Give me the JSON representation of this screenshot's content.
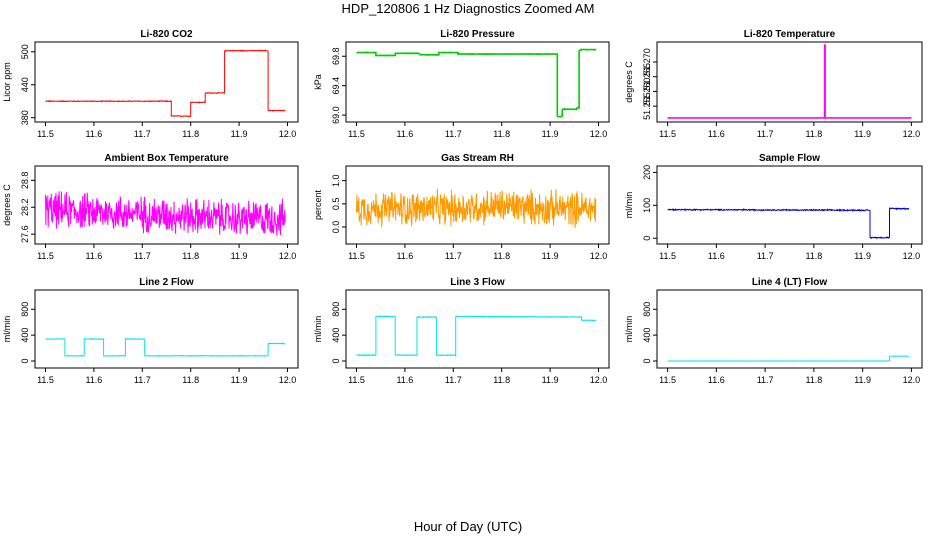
{
  "figure": {
    "title": "HDP_120806  1 Hz Diagnostics Zoomed AM",
    "xlabel": "Hour of Day (UTC)"
  },
  "chart_data": [
    {
      "type": "line",
      "title": "Li-820 CO2",
      "xlabel": "",
      "ylabel": "Licor ppm",
      "color": "#ff0000",
      "xlim": [
        11.5,
        12.0
      ],
      "ylim": [
        378,
        512
      ],
      "xticks": [
        "11.5",
        "11.6",
        "11.7",
        "11.8",
        "11.9",
        "12.0"
      ],
      "yticks": [
        {
          "v": 380,
          "t": "380"
        },
        {
          "v": 440,
          "t": "440"
        },
        {
          "v": 500,
          "t": "500"
        }
      ],
      "noise": 0.6,
      "clip": false,
      "x": [
        11.5,
        11.76,
        11.76,
        11.8,
        11.8,
        11.83,
        11.83,
        11.87,
        11.87,
        11.96,
        11.96,
        11.995
      ],
      "y": [
        410,
        410,
        383,
        383,
        408,
        408,
        425,
        425,
        502,
        502,
        393,
        393
      ]
    },
    {
      "type": "line",
      "title": "Li-820 Pressure",
      "xlabel": "",
      "ylabel": "kPa",
      "color": "#00cc00",
      "xlim": [
        11.5,
        12.0
      ],
      "ylim": [
        68.95,
        69.95
      ],
      "xticks": [
        "11.5",
        "11.6",
        "11.7",
        "11.8",
        "11.9",
        "12.0"
      ],
      "yticks": [
        {
          "v": 69.0,
          "t": "69.0"
        },
        {
          "v": 69.4,
          "t": "69.4"
        },
        {
          "v": 69.8,
          "t": "69.8"
        }
      ],
      "noise": 0.002,
      "clip": false,
      "x": [
        11.5,
        11.54,
        11.54,
        11.58,
        11.58,
        11.63,
        11.63,
        11.67,
        11.67,
        11.71,
        11.71,
        11.915,
        11.915,
        11.925,
        11.925,
        11.955,
        11.955,
        11.96,
        11.96,
        11.965,
        11.965,
        11.995
      ],
      "y": [
        69.85,
        69.85,
        69.81,
        69.81,
        69.84,
        69.84,
        69.82,
        69.82,
        69.85,
        69.85,
        69.83,
        69.83,
        68.98,
        68.98,
        69.08,
        69.08,
        69.1,
        69.1,
        69.88,
        69.88,
        69.89,
        69.89
      ]
    },
    {
      "type": "line",
      "title": "Li-820 Temperature",
      "xlabel": "",
      "ylabel": "degrees C",
      "color": "#ff00ff",
      "xlim": [
        11.5,
        12.0
      ],
      "ylim": [
        51.2507,
        51.2757
      ],
      "xticks": [
        "11.5",
        "11.6",
        "11.7",
        "11.8",
        "11.9",
        "12.0"
      ],
      "yticks": [
        {
          "v": 51.255,
          "t": "51.255"
        },
        {
          "v": 51.26,
          "t": "51.260"
        },
        {
          "v": 51.265,
          "t": "51.265"
        },
        {
          "v": 51.27,
          "t": "51.270"
        }
      ],
      "noise": 0,
      "clip": false,
      "x": [
        11.5,
        11.822,
        11.822,
        11.823,
        11.823,
        12.0
      ],
      "y": [
        51.251,
        51.251,
        51.2757,
        51.2757,
        51.251,
        51.251
      ]
    },
    {
      "type": "line",
      "title": "Ambient Box Temperature",
      "xlabel": "",
      "ylabel": "degrees C",
      "color": "#ff00ff",
      "xlim": [
        11.5,
        12.0
      ],
      "ylim": [
        27.45,
        29.05
      ],
      "xticks": [
        "11.5",
        "11.6",
        "11.7",
        "11.8",
        "11.9",
        "12.0"
      ],
      "yticks": [
        {
          "v": 27.6,
          "t": "27.6"
        },
        {
          "v": 28.2,
          "t": "28.2"
        },
        {
          "v": 28.8,
          "t": "28.8"
        }
      ],
      "noise": 0.32,
      "clip": true,
      "x": [
        11.5,
        11.6,
        11.7,
        11.8,
        11.9,
        11.995
      ],
      "y": [
        28.15,
        28.1,
        28.05,
        28.0,
        27.95,
        27.95
      ]
    },
    {
      "type": "line",
      "title": "Gas Stream RH",
      "xlabel": "",
      "ylabel": "percent",
      "color": "#ff9900",
      "xlim": [
        11.5,
        12.0
      ],
      "ylim": [
        -0.3,
        1.25
      ],
      "xticks": [
        "11.5",
        "11.6",
        "11.7",
        "11.8",
        "11.9",
        "12.0"
      ],
      "yticks": [
        {
          "v": 0.0,
          "t": "0.0"
        },
        {
          "v": 0.5,
          "t": "0.5"
        },
        {
          "v": 1.0,
          "t": "1.0"
        }
      ],
      "noise": 0.3,
      "clip": true,
      "x": [
        11.5,
        11.6,
        11.7,
        11.8,
        11.9,
        11.995
      ],
      "y": [
        0.4,
        0.4,
        0.4,
        0.45,
        0.4,
        0.4
      ]
    },
    {
      "type": "line",
      "title": "Sample Flow",
      "xlabel": "",
      "ylabel": "ml/min",
      "color": "#0000cc",
      "xlim": [
        11.5,
        12.0
      ],
      "ylim": [
        -8,
        210
      ],
      "xticks": [
        "11.5",
        "11.6",
        "11.7",
        "11.8",
        "11.9",
        "12.0"
      ],
      "yticks": [
        {
          "v": 0,
          "t": "0"
        },
        {
          "v": 100,
          "t": "100"
        },
        {
          "v": 200,
          "t": "200"
        }
      ],
      "noise": 1.5,
      "clip": false,
      "x": [
        11.5,
        11.915,
        11.915,
        11.955,
        11.955,
        11.995
      ],
      "y": [
        87,
        85,
        2,
        2,
        90,
        90
      ]
    },
    {
      "type": "line",
      "title": "Line 2 Flow",
      "xlabel": "",
      "ylabel": "ml/min",
      "color": "#00e5ee",
      "xlim": [
        11.5,
        12.0
      ],
      "ylim": [
        -60,
        1050
      ],
      "xticks": [
        "11.5",
        "11.6",
        "11.7",
        "11.8",
        "11.9",
        "12.0"
      ],
      "yticks": [
        {
          "v": 0,
          "t": "0"
        },
        {
          "v": 400,
          "t": "400"
        },
        {
          "v": 800,
          "t": "800"
        }
      ],
      "noise": 4,
      "clip": false,
      "x": [
        11.5,
        11.54,
        11.54,
        11.58,
        11.58,
        11.62,
        11.62,
        11.665,
        11.665,
        11.705,
        11.705,
        11.96,
        11.96,
        11.995
      ],
      "y": [
        340,
        340,
        80,
        80,
        340,
        340,
        80,
        80,
        340,
        340,
        80,
        80,
        270,
        270
      ]
    },
    {
      "type": "line",
      "title": "Line 3 Flow",
      "xlabel": "",
      "ylabel": "ml/min",
      "color": "#00e5ee",
      "xlim": [
        11.5,
        12.0
      ],
      "ylim": [
        -60,
        1050
      ],
      "xticks": [
        "11.5",
        "11.6",
        "11.7",
        "11.8",
        "11.9",
        "12.0"
      ],
      "yticks": [
        {
          "v": 0,
          "t": "0"
        },
        {
          "v": 400,
          "t": "400"
        },
        {
          "v": 800,
          "t": "800"
        }
      ],
      "noise": 5,
      "clip": false,
      "x": [
        11.5,
        11.54,
        11.54,
        11.58,
        11.58,
        11.625,
        11.625,
        11.665,
        11.665,
        11.705,
        11.705,
        11.965,
        11.965,
        11.995
      ],
      "y": [
        90,
        90,
        690,
        690,
        90,
        90,
        680,
        680,
        90,
        90,
        690,
        680,
        630,
        630
      ]
    },
    {
      "type": "line",
      "title": "Line 4 (LT) Flow",
      "xlabel": "",
      "ylabel": "ml/min",
      "color": "#00e5ee",
      "xlim": [
        11.5,
        12.0
      ],
      "ylim": [
        -60,
        1050
      ],
      "xticks": [
        "11.5",
        "11.6",
        "11.7",
        "11.8",
        "11.9",
        "12.0"
      ],
      "yticks": [
        {
          "v": 0,
          "t": "0"
        },
        {
          "v": 400,
          "t": "400"
        },
        {
          "v": 800,
          "t": "800"
        }
      ],
      "noise": 1.5,
      "clip": false,
      "x": [
        11.5,
        11.955,
        11.955,
        11.995
      ],
      "y": [
        0,
        0,
        75,
        75
      ]
    }
  ]
}
